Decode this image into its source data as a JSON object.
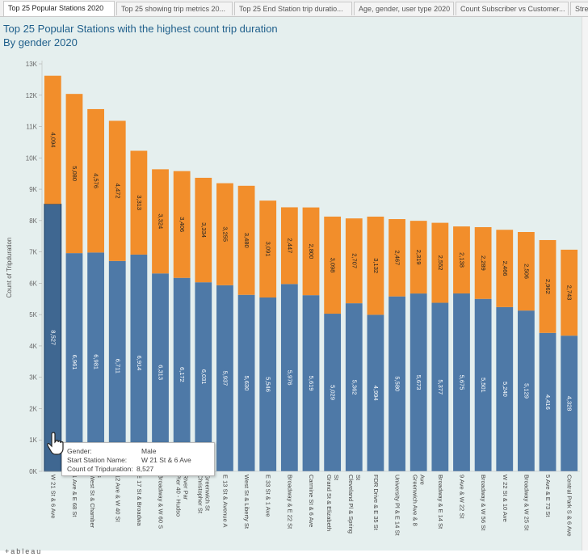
{
  "tabs": [
    {
      "label": "Top 25 Popular Stations 2020",
      "active": true
    },
    {
      "label": "Top 25 showing trip metrics 20...",
      "active": false
    },
    {
      "label": "Top 25 End Station trip duratio...",
      "active": false
    },
    {
      "label": "Age, gender, user type 2020",
      "active": false
    },
    {
      "label": "Count Subscriber vs Customer...",
      "active": false
    },
    {
      "label": "Stree",
      "active": false
    }
  ],
  "footer": {
    "logo": "+ableau"
  },
  "tooltip": {
    "rows": [
      {
        "label": "Gender:",
        "value": "Male"
      },
      {
        "label": "Start Station Name:",
        "value": "W 21 St & 6 Ave"
      },
      {
        "label": "Count of Tripduration:",
        "value": "8,527"
      }
    ]
  },
  "colors": {
    "male": "#4e79a7",
    "female": "#f28e2b",
    "title": "#1f5f8b",
    "background": "#e5efee"
  },
  "chart_data": {
    "type": "bar",
    "stacked": true,
    "title": "Top 25 Popular Stations with the highest count trip duration",
    "subtitle": "By gender 2020",
    "ylabel": "Count of Tripduration",
    "xlabel": "",
    "ylim": [
      0,
      13000
    ],
    "y_ticks": [
      "0K",
      "1K",
      "2K",
      "3K",
      "4K",
      "5K",
      "6K",
      "7K",
      "8K",
      "9K",
      "10K",
      "11K",
      "12K",
      "13K"
    ],
    "grid": false,
    "categories": [
      "W 21 St & 6 Ave",
      "1 Ave & E 68 St",
      "West St & Chambers St",
      "12 Ave & W 40 St",
      "E 17 St & Broadway",
      "Broadway & W 60 St",
      "Pier 40 - Hudson River Park",
      "Christopher St & Greenwich St",
      "E 13 St & Avenue A",
      "West St & Liberty St",
      "E 33 St & 1 Ave",
      "Broadway & E 22 St",
      "Carmine St & 6 Ave",
      "Grand St & Elizabeth St",
      "Cleveland Pl & Spring St",
      "FDR Drive & E 35 St",
      "University Pl & E 14 St",
      "Greenwich Ave & 8 Ave",
      "Broadway & E 14 St",
      "9 Ave & W 22 St",
      "Broadway & W 56 St",
      "W 22 St & 10 Ave",
      "Broadway & W 25 St",
      "5 Ave & E 73 St",
      "Central Park S & 6 Ave"
    ],
    "x_tick_lines": [
      [
        "W 21 St & 6 Ave"
      ],
      [
        "1 Ave & E 68 St"
      ],
      [
        "West St & Chamber",
        "s"
      ],
      [
        "12 Ave & W 40 St"
      ],
      [
        "E 17 St & Broadwa"
      ],
      [
        "Broadway & W 60 S"
      ],
      [
        "Pier 40 - Hudso",
        "River Par"
      ],
      [
        "Christopher St",
        "Greenwich St"
      ],
      [
        "E 13 St & Avenue A"
      ],
      [
        "West St & Liberty St"
      ],
      [
        "E 33 St & 1 Ave"
      ],
      [
        "Broadway & E 22 St"
      ],
      [
        "Carmine St & 6 Ave"
      ],
      [
        "Grand St & Elizabeth",
        "St"
      ],
      [
        "Cleveland Pl & Spring",
        "St"
      ],
      [
        "FDR Drive & E 35 St"
      ],
      [
        "University Pl & E 14 St"
      ],
      [
        "Greenwich Ave & 8",
        "Ave"
      ],
      [
        "Broadway & E 14 St"
      ],
      [
        "9 Ave & W 22 St"
      ],
      [
        "Broadway & W 56 St"
      ],
      [
        "W 22 St & 10 Ave"
      ],
      [
        "Broadway & W 25 St"
      ],
      [
        "5 Ave & E 73 St"
      ],
      [
        "Central Park S & 6 Ave"
      ]
    ],
    "series": [
      {
        "name": "Male",
        "values": [
          8527,
          6961,
          6981,
          6711,
          6914,
          6313,
          6172,
          6031,
          5937,
          5630,
          5546,
          5976,
          5619,
          5029,
          5362,
          4994,
          5580,
          5673,
          5377,
          5675,
          5501,
          5240,
          5129,
          4416,
          4328
        ],
        "labels": [
          "8,527",
          "6,961",
          "6,981",
          "6,711",
          "6,914",
          "6,313",
          "6,172",
          "6,031",
          "5,937",
          "5,630",
          "5,546",
          "5,976",
          "5,619",
          "5,029",
          "5,362",
          "4,994",
          "5,580",
          "5,673",
          "5,377",
          "5,675",
          "5,501",
          "5,240",
          "5,129",
          "4,416",
          "4,328"
        ]
      },
      {
        "name": "Female",
        "values": [
          4094,
          5080,
          4576,
          4472,
          3313,
          3324,
          3406,
          3334,
          3255,
          3480,
          3091,
          2447,
          2800,
          3098,
          2707,
          3132,
          2467,
          2319,
          2552,
          2138,
          2289,
          2466,
          2506,
          2962,
          2743
        ],
        "labels": [
          "4,094",
          "5,080",
          "4,576",
          "4,472",
          "3,313",
          "3,324",
          "3,406",
          "3,334",
          "3,255",
          "3,480",
          "3,091",
          "2,447",
          "2,800",
          "3,098",
          "2,707",
          "3,132",
          "2,467",
          "2,319",
          "2,552",
          "2,138",
          "2,289",
          "2,466",
          "2,506",
          "2,962",
          "2,743"
        ]
      }
    ],
    "highlighted_index": 0
  }
}
